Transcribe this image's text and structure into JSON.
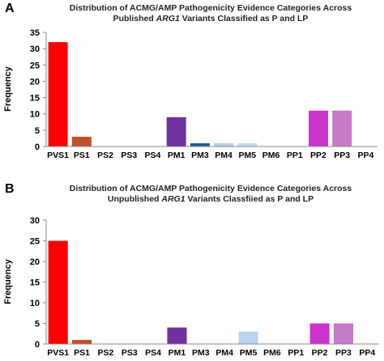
{
  "chart_data": [
    {
      "panel_label": "A",
      "type": "bar",
      "title_line1": "Distribution of ACMG/AMP Pathogenicity Evidence Categories Across",
      "title_line2_pre": "Published ",
      "title_line2_gene": "ARG1",
      "title_line2_post": " Variants Classified as P and LP",
      "ylabel": "Frequency",
      "ylim": [
        0,
        35
      ],
      "yticks": [
        0,
        5,
        10,
        15,
        20,
        25,
        30,
        35
      ],
      "categories": [
        "PVS1",
        "PS1",
        "PS2",
        "PS3",
        "PS4",
        "PM1",
        "PM3",
        "PM4",
        "PM5",
        "PM6",
        "PP1",
        "PP2",
        "PP3",
        "PP4"
      ],
      "values": [
        32,
        3,
        0,
        0,
        0,
        9,
        1,
        1,
        1,
        0,
        0,
        11,
        11,
        0
      ],
      "colors": [
        "#ff0000",
        "#c0502b",
        "#999999",
        "#999999",
        "#999999",
        "#7030a0",
        "#1f5a96",
        "#b8cde8",
        "#c5d9f1",
        "#999999",
        "#999999",
        "#cc33cc",
        "#c47ac9",
        "#999999"
      ]
    },
    {
      "panel_label": "B",
      "type": "bar",
      "title_line1": "Distribution of ACMG/AMP Pathogenicity Evidence Categories Across",
      "title_line2_pre": "Unpublished ",
      "title_line2_gene": "ARG1",
      "title_line2_post": " Variants Classfiied as P and LP",
      "ylabel": "Frequency",
      "ylim": [
        0,
        30
      ],
      "yticks": [
        0,
        5,
        10,
        15,
        20,
        25,
        30
      ],
      "categories": [
        "PVS1",
        "PS1",
        "PS2",
        "PS3",
        "PS4",
        "PM1",
        "PM3",
        "PM4",
        "PM5",
        "PM6",
        "PP1",
        "PP2",
        "PP3",
        "PP4"
      ],
      "values": [
        25,
        1,
        0,
        0,
        0,
        4,
        0,
        0,
        3,
        0,
        0,
        5,
        5,
        0
      ],
      "colors": [
        "#ff0000",
        "#c0502b",
        "#999999",
        "#999999",
        "#999999",
        "#7030a0",
        "#999999",
        "#999999",
        "#b8d4f0",
        "#999999",
        "#999999",
        "#cc33cc",
        "#c47ac9",
        "#999999"
      ]
    }
  ]
}
